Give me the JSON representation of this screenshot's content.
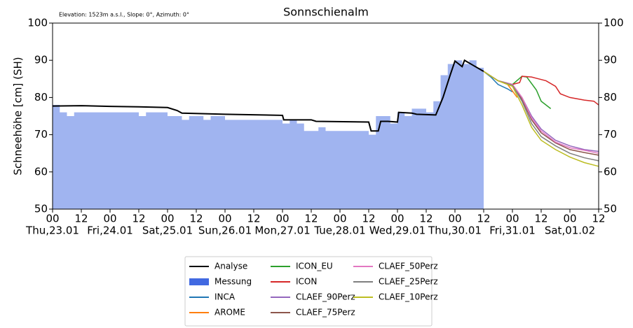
{
  "chart_data": {
    "type": "line",
    "title": "Sonnschienalm",
    "annotation": "Elevation: 1523m a.s.l., Slope: 0°, Azimuth: 0°",
    "ylabel": "Schneehöhe [cm] (SH)",
    "xlim": [
      0,
      228
    ],
    "ylim": [
      50,
      100
    ],
    "yticks": [
      50,
      60,
      70,
      80,
      90,
      100
    ],
    "y2lim": [
      50,
      100
    ],
    "y2ticks": [
      50,
      60,
      70,
      80,
      90,
      100
    ],
    "xticks": [
      {
        "value": 0,
        "label": "00"
      },
      {
        "value": 12,
        "label": "12"
      },
      {
        "value": 24,
        "label": "00"
      },
      {
        "value": 36,
        "label": "12"
      },
      {
        "value": 48,
        "label": "00"
      },
      {
        "value": 60,
        "label": "12"
      },
      {
        "value": 72,
        "label": "00"
      },
      {
        "value": 84,
        "label": "12"
      },
      {
        "value": 96,
        "label": "00"
      },
      {
        "value": 108,
        "label": "12"
      },
      {
        "value": 120,
        "label": "00"
      },
      {
        "value": 132,
        "label": "12"
      },
      {
        "value": 144,
        "label": "00"
      },
      {
        "value": 156,
        "label": "12"
      },
      {
        "value": 168,
        "label": "00"
      },
      {
        "value": 180,
        "label": "12"
      },
      {
        "value": 192,
        "label": "00"
      },
      {
        "value": 204,
        "label": "12"
      },
      {
        "value": 216,
        "label": "00"
      },
      {
        "value": 228,
        "label": "12"
      }
    ],
    "day_labels": [
      {
        "value": 0,
        "label": "Thu,23.01"
      },
      {
        "value": 24,
        "label": "Fri,24.01"
      },
      {
        "value": 48,
        "label": "Sat,25.01"
      },
      {
        "value": 72,
        "label": "Sun,26.01"
      },
      {
        "value": 96,
        "label": "Mon,27.01"
      },
      {
        "value": 120,
        "label": "Tue,28.01"
      },
      {
        "value": 144,
        "label": "Wed,29.01"
      },
      {
        "value": 168,
        "label": "Thu,30.01"
      },
      {
        "value": 192,
        "label": "Fri,31.01"
      },
      {
        "value": 216,
        "label": "Sat,01.02"
      }
    ],
    "series": [
      {
        "name": "Analyse",
        "color": "#000000",
        "x": [
          0,
          12,
          24,
          36,
          48,
          52,
          54,
          72,
          96,
          96.5,
          108,
          110,
          132,
          133,
          136,
          137,
          140,
          144,
          144.5,
          150,
          152,
          160,
          163,
          166,
          168,
          171,
          172,
          176,
          180
        ],
        "values": [
          77.7,
          77.8,
          77.6,
          77.5,
          77.3,
          76.5,
          75.8,
          75.5,
          75.2,
          74.0,
          74.0,
          73.6,
          73.4,
          71,
          71,
          73.6,
          73.6,
          73.4,
          76.0,
          75.8,
          75.5,
          75.3,
          80,
          86,
          89.8,
          88.3,
          90,
          88.5,
          87
        ]
      },
      {
        "name": "Messung",
        "color": "#4169e1",
        "fill": true,
        "x": [
          0,
          3,
          6,
          9,
          12,
          15,
          18,
          21,
          24,
          27,
          30,
          33,
          36,
          39,
          42,
          45,
          48,
          51,
          54,
          57,
          60,
          63,
          66,
          69,
          72,
          75,
          78,
          81,
          84,
          87,
          90,
          93,
          96,
          99,
          102,
          105,
          108,
          111,
          114,
          117,
          120,
          123,
          126,
          129,
          132,
          135,
          138,
          141,
          144,
          147,
          150,
          153,
          156,
          159,
          162,
          165,
          168,
          171,
          174,
          177,
          180
        ],
        "values": [
          78,
          76,
          75,
          76,
          76,
          76,
          76,
          76,
          76,
          76,
          76,
          76,
          75,
          76,
          76,
          76,
          75,
          75,
          74,
          75,
          75,
          74,
          75,
          75,
          74,
          74,
          74,
          74,
          74,
          74,
          74,
          74,
          73,
          74,
          73,
          71,
          71,
          72,
          71,
          71,
          71,
          71,
          71,
          71,
          70,
          75,
          75,
          73,
          76,
          75,
          77,
          77,
          76,
          79,
          86,
          89,
          90,
          89,
          90,
          88,
          87
        ]
      },
      {
        "name": "INCA",
        "color": "#1f77b4",
        "x": [
          180,
          183,
          186,
          190,
          192
        ],
        "values": [
          87,
          85.5,
          83.5,
          82.3,
          81.5
        ]
      },
      {
        "name": "AROME",
        "color": "#ff7f0e",
        "x": [
          180,
          186,
          190,
          194
        ],
        "values": [
          87,
          84.5,
          83.5,
          80
        ]
      },
      {
        "name": "ICON_EU",
        "color": "#2ca02c",
        "x": [
          180,
          186,
          192,
          196,
          198,
          202,
          204,
          208
        ],
        "values": [
          87,
          84.5,
          83.5,
          85.7,
          85.5,
          82,
          79,
          77
        ]
      },
      {
        "name": "ICON",
        "color": "#d62728",
        "x": [
          180,
          186,
          192,
          195,
          196,
          200,
          206,
          210,
          212,
          216,
          222,
          226,
          228
        ],
        "values": [
          87,
          84.5,
          83.5,
          84,
          85.7,
          85.5,
          84.5,
          83,
          81,
          80,
          79.3,
          79,
          78
        ]
      },
      {
        "name": "CLAEF_90Perz",
        "color": "#9467bd",
        "x": [
          180,
          186,
          192,
          196,
          200,
          204,
          210,
          216,
          222,
          228
        ],
        "values": [
          87,
          84.5,
          83.5,
          80,
          75,
          71.5,
          68.5,
          67,
          66,
          65.5
        ]
      },
      {
        "name": "CLAEF_75Perz",
        "color": "#8c564b",
        "x": [
          180,
          186,
          192,
          196,
          200,
          204,
          210,
          216,
          222,
          228
        ],
        "values": [
          87,
          84.5,
          83.5,
          79.5,
          74,
          70.5,
          67.8,
          66,
          65.2,
          64.5
        ]
      },
      {
        "name": "CLAEF_50Perz",
        "color": "#e377c2",
        "x": [
          180,
          186,
          192,
          196,
          200,
          204,
          210,
          216,
          222,
          228
        ],
        "values": [
          87,
          84.5,
          83.5,
          80,
          74.5,
          71,
          68,
          66.5,
          65.8,
          65
        ]
      },
      {
        "name": "CLAEF_25Perz",
        "color": "#7f7f7f",
        "x": [
          180,
          186,
          192,
          196,
          200,
          204,
          210,
          216,
          222,
          228
        ],
        "values": [
          87,
          84.5,
          83.3,
          79,
          73,
          69.5,
          67,
          65,
          63.8,
          63
        ]
      },
      {
        "name": "CLAEF_10Perz",
        "color": "#bcbd22",
        "x": [
          180,
          186,
          192,
          196,
          200,
          204,
          210,
          216,
          222,
          228
        ],
        "values": [
          87,
          84.5,
          83,
          78,
          72,
          68.5,
          66,
          64,
          62.5,
          61.5
        ]
      }
    ],
    "legend": "bottom"
  }
}
